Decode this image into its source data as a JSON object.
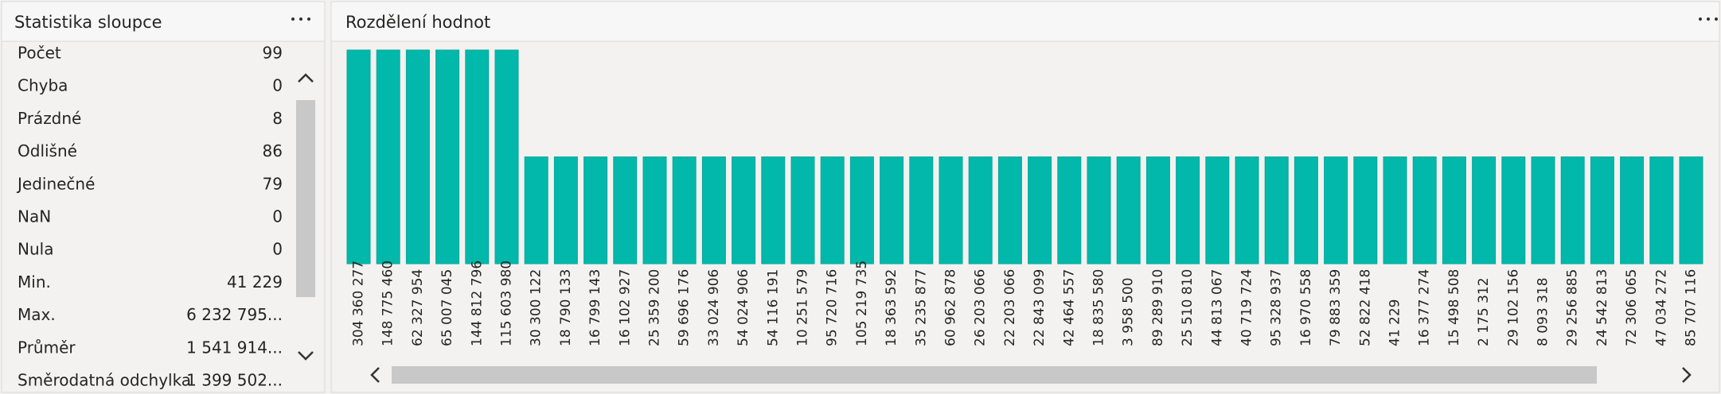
{
  "stats_panel": {
    "title": "Statistika sloupce",
    "rows": [
      {
        "label": "Počet",
        "value": "99"
      },
      {
        "label": "Chyba",
        "value": "0"
      },
      {
        "label": "Prázdné",
        "value": "8"
      },
      {
        "label": "Odlišné",
        "value": "86"
      },
      {
        "label": "Jedinečné",
        "value": "79"
      },
      {
        "label": "NaN",
        "value": "0"
      },
      {
        "label": "Nula",
        "value": "0"
      },
      {
        "label": "Min.",
        "value": "41 229"
      },
      {
        "label": "Max.",
        "value": "6 232 795..."
      },
      {
        "label": "Průměr",
        "value": "1 541 914..."
      },
      {
        "label": "Směrodatná odchylka",
        "value": "1 399 502..."
      }
    ]
  },
  "chart_data": {
    "type": "bar",
    "title": "Rozdělení hodnot",
    "color": "#01b8aa",
    "categories": [
      "304 360 277",
      "148 775 460",
      "62 327 954",
      "65 007 045",
      "144 812 796",
      "115 603 980",
      "30 300 122",
      "18 790 133",
      "16 799 143",
      "16 102 927",
      "25 359 200",
      "59 696 176",
      "33 024 906",
      "54 024 906",
      "54 116 191",
      "10 251 579",
      "95 720 716",
      "105 219 735",
      "18 363 592",
      "35 235 877",
      "60 962 878",
      "26 203 066",
      "22 203 066",
      "22 843 099",
      "42 464 557",
      "18 835 580",
      "3 958 500",
      "89 289 910",
      "25 510 810",
      "44 813 067",
      "40 719 724",
      "95 328 937",
      "16 970 558",
      "79 883 359",
      "52 822 418",
      "41 229",
      "16 377 274",
      "15 498 508",
      "2 175 312",
      "29 102 156",
      "8 093 318",
      "29 256 885",
      "24 542 813",
      "72 306 065",
      "47 034 272",
      "85 707 116"
    ],
    "values": [
      2,
      2,
      2,
      2,
      2,
      2,
      1,
      1,
      1,
      1,
      1,
      1,
      1,
      1,
      1,
      1,
      1,
      1,
      1,
      1,
      1,
      1,
      1,
      1,
      1,
      1,
      1,
      1,
      1,
      1,
      1,
      1,
      1,
      1,
      1,
      1,
      1,
      1,
      1,
      1,
      1,
      1,
      1,
      1,
      1,
      1
    ]
  }
}
